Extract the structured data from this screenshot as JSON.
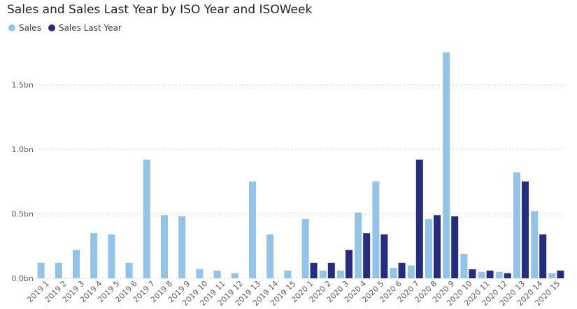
{
  "chart_data": {
    "type": "bar",
    "title": "Sales and Sales Last Year by ISO Year and ISOWeek",
    "xlabel": "",
    "ylabel": "",
    "legend_position": "top-left",
    "grid": true,
    "ylim": [
      0,
      1.8
    ],
    "y_tick_values": [
      0,
      0.5,
      1.0,
      1.5
    ],
    "y_tick_labels": [
      "0.0bn",
      "0.5bn",
      "1.0bn",
      "1.5bn"
    ],
    "categories": [
      "2019 1",
      "2019 2",
      "2019 3",
      "2019 4",
      "2019 5",
      "2019 6",
      "2019 7",
      "2019 8",
      "2019 9",
      "2019 10",
      "2019 11",
      "2019 12",
      "2019 13",
      "2019 14",
      "2019 15",
      "2020 1",
      "2020 2",
      "2020 3",
      "2020 4",
      "2020 5",
      "2020 6",
      "2020 7",
      "2020 8",
      "2020 9",
      "2020 10",
      "2020 11",
      "2020 12",
      "2020 13",
      "2020 14",
      "2020 15"
    ],
    "series": [
      {
        "name": "Sales",
        "color": "#92c3e8",
        "values": [
          0.12,
          0.12,
          0.22,
          0.35,
          0.34,
          0.12,
          0.92,
          0.49,
          0.48,
          0.07,
          0.06,
          0.04,
          0.75,
          0.34,
          0.06,
          0.46,
          0.06,
          0.06,
          0.51,
          0.75,
          0.08,
          0.1,
          0.46,
          1.75,
          0.19,
          0.05,
          0.05,
          0.82,
          0.52,
          0.04
        ]
      },
      {
        "name": "Sales Last Year",
        "color": "#262d80",
        "values": [
          0,
          0,
          0,
          0,
          0,
          0,
          0,
          0,
          0,
          0,
          0,
          0,
          0,
          0,
          0,
          0.12,
          0.12,
          0.22,
          0.35,
          0.34,
          0.12,
          0.92,
          0.49,
          0.48,
          0.07,
          0.06,
          0.04,
          0.75,
          0.34,
          0.06
        ]
      }
    ]
  }
}
